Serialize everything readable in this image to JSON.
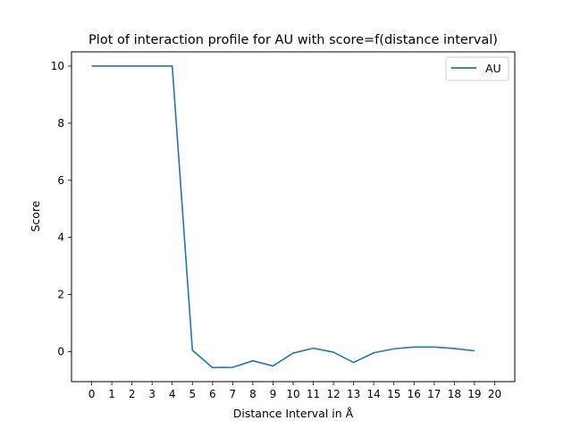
{
  "chart_data": {
    "type": "line",
    "title": "Plot of interaction profile for AU with score=f(distance interval)",
    "xlabel": "Distance Interval in Å",
    "ylabel": "Score",
    "x_ticks": [
      "0",
      "1",
      "2",
      "3",
      "4",
      "5",
      "6",
      "7",
      "8",
      "9",
      "10",
      "11",
      "12",
      "13",
      "14",
      "15",
      "16",
      "17",
      "18",
      "19",
      "20"
    ],
    "y_ticks": [
      "0",
      "2",
      "4",
      "6",
      "8",
      "10"
    ],
    "xlim": [
      -1.0,
      21.0
    ],
    "ylim": [
      -1.05,
      10.5
    ],
    "grid": false,
    "legend_position": "top-right",
    "series": [
      {
        "name": "AU",
        "color": "#1f77b4",
        "x": [
          0,
          1,
          2,
          3,
          4,
          5,
          6,
          7,
          8,
          9,
          10,
          11,
          12,
          13,
          14,
          15,
          16,
          17,
          18,
          19
        ],
        "y": [
          10,
          10,
          10,
          10,
          10,
          0.05,
          -0.56,
          -0.55,
          -0.32,
          -0.5,
          -0.05,
          0.12,
          -0.02,
          -0.38,
          -0.04,
          0.1,
          0.16,
          0.16,
          0.11,
          0.03
        ]
      }
    ]
  }
}
